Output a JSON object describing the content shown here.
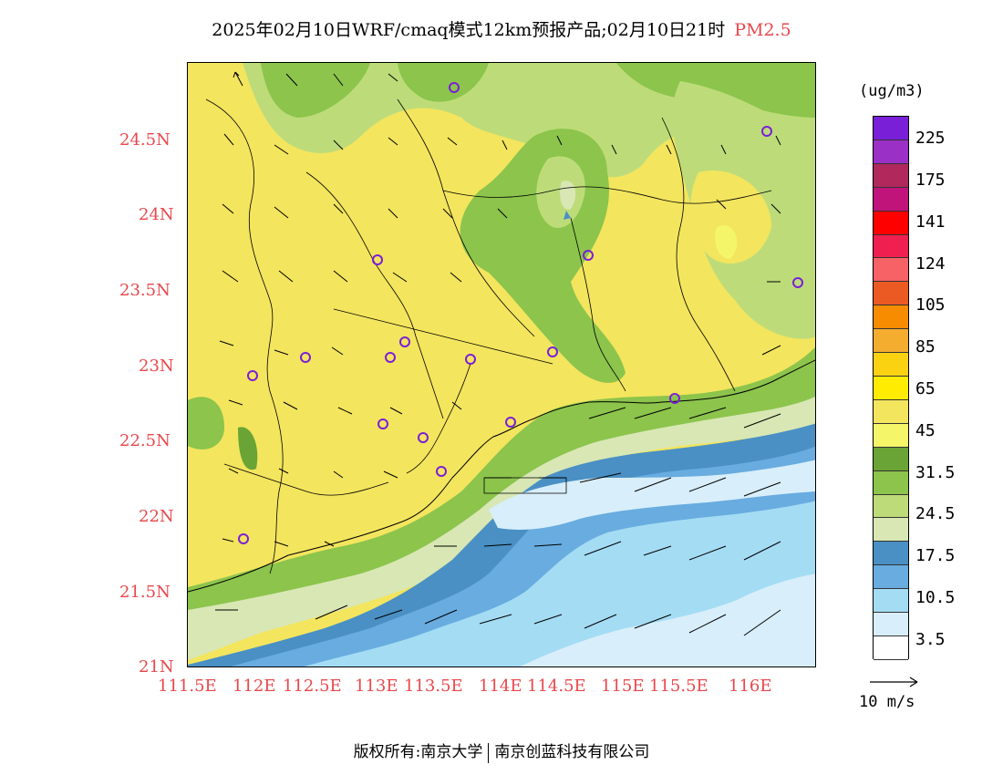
{
  "title": {
    "main": "2025年02月10日WRF/cmaq模式12km预报产品;02月10日21时",
    "pollutant": "PM2.5"
  },
  "axes": {
    "lat_labels": [
      "24.5N",
      "24N",
      "23.5N",
      "23N",
      "22.5N",
      "22N",
      "21.5N",
      "21N"
    ],
    "lon_labels": [
      "111.5E",
      "112E",
      "112.5E",
      "113E",
      "113.5E",
      "114E",
      "114.5E",
      "115E",
      "115.5E",
      "116E"
    ]
  },
  "legend": {
    "unit": "(ug/m3)",
    "labels": [
      "225",
      "175",
      "141",
      "124",
      "105",
      "85",
      "65",
      "45",
      "31.5",
      "24.5",
      "17.5",
      "10.5",
      "3.5"
    ],
    "colors": [
      "#7a1fd8",
      "#9b30c6",
      "#b0285c",
      "#c0147a",
      "#ff0000",
      "#ef1f4f",
      "#f66266",
      "#ec5a23",
      "#f88c00",
      "#f5ad30",
      "#fbd212",
      "#ffec00",
      "#f3e55e",
      "#f5f569",
      "#6aa436",
      "#8cc44c",
      "#bddc79",
      "#d8e7b4",
      "#4a90c4",
      "#68ace0",
      "#a4dcf4",
      "#d8eefa",
      "#ffffff"
    ],
    "vector_unit": "10 m/s"
  },
  "copyright": {
    "text": "版权所有:南京大学",
    "partner": "南京创蓝科技有限公司"
  }
}
